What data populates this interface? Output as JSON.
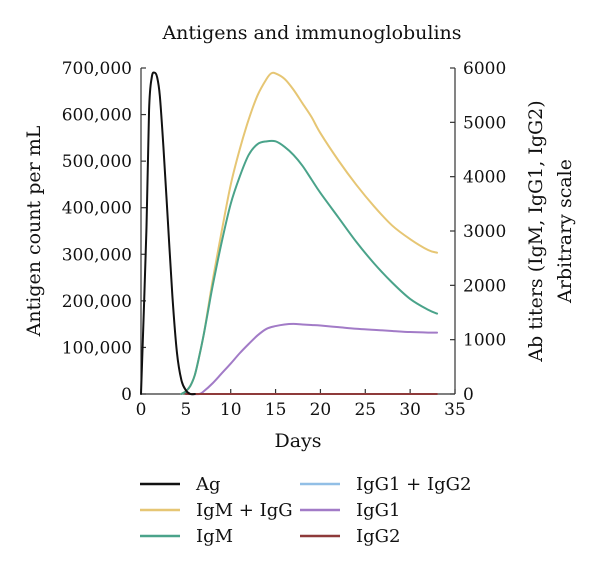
{
  "chart_data": {
    "type": "line",
    "title": "Antigens and immunoglobulins",
    "xlabel": "Days",
    "ylabel_left": "Antigen count per mL",
    "ylabel_right_line1": "Ab titers (IgM, IgG1, IgG2)",
    "ylabel_right_line2": "Arbitrary scale",
    "xlim": [
      0,
      35
    ],
    "ylim_left": [
      0,
      700000
    ],
    "ylim_right": [
      0,
      6000
    ],
    "x_ticks": [
      0,
      5,
      10,
      15,
      20,
      25,
      30,
      35
    ],
    "x_tick_labels": [
      "0",
      "5",
      "10",
      "15",
      "20",
      "25",
      "30",
      "35"
    ],
    "y_left_ticks": [
      0,
      100000,
      200000,
      300000,
      400000,
      500000,
      600000,
      700000
    ],
    "y_left_tick_labels": [
      "0",
      "100,000",
      "200,000",
      "300,000",
      "400,000",
      "500,000",
      "600,000",
      "700,000"
    ],
    "y_right_ticks": [
      0,
      1000,
      2000,
      3000,
      4000,
      5000,
      6000
    ],
    "y_right_tick_labels": [
      "0",
      "1000",
      "2000",
      "3000",
      "4000",
      "5000",
      "6000"
    ],
    "grid": false,
    "legend_placement": "bottom",
    "series": [
      {
        "name": "Ag",
        "axis": "left",
        "color": "#111111",
        "x": [
          0,
          0.6,
          0.9,
          1.2,
          1.5,
          1.8,
          2.1,
          2.5,
          3.0,
          3.5,
          4.0,
          4.5,
          5.0,
          5.5,
          6.0
        ],
        "y": [
          0,
          350000,
          610000,
          680000,
          690000,
          680000,
          640000,
          530000,
          370000,
          210000,
          90000,
          30000,
          8000,
          0,
          0
        ]
      },
      {
        "name": "IgM + IgG",
        "axis": "right",
        "color": "#e6c674",
        "x": [
          4.5,
          5.0,
          5.5,
          6.0,
          6.5,
          7.0,
          7.5,
          8.0,
          9.0,
          10.0,
          11.0,
          12.0,
          13.0,
          14.0,
          14.5,
          15.0,
          16.0,
          17.0,
          18.0,
          19.0,
          20.0,
          22.0,
          24.0,
          26.0,
          28.0,
          30.0,
          32.0,
          33.0
        ],
        "y": [
          0,
          50,
          150,
          350,
          700,
          1100,
          1600,
          2100,
          3000,
          3850,
          4500,
          5050,
          5500,
          5800,
          5900,
          5900,
          5800,
          5600,
          5350,
          5100,
          4800,
          4300,
          3850,
          3450,
          3100,
          2850,
          2650,
          2600
        ]
      },
      {
        "name": "IgM",
        "axis": "right",
        "color": "#4aa38a",
        "x": [
          4.5,
          5.0,
          5.5,
          6.0,
          6.5,
          7.0,
          7.5,
          8.0,
          9.0,
          10.0,
          11.0,
          12.0,
          13.0,
          14.0,
          15.0,
          16.0,
          17.0,
          18.0,
          19.0,
          20.0,
          22.0,
          24.0,
          26.0,
          28.0,
          30.0,
          32.0,
          33.0
        ],
        "y": [
          0,
          50,
          150,
          350,
          700,
          1100,
          1550,
          2000,
          2800,
          3500,
          4000,
          4400,
          4600,
          4650,
          4650,
          4550,
          4400,
          4200,
          3950,
          3700,
          3250,
          2800,
          2400,
          2050,
          1750,
          1550,
          1480
        ]
      },
      {
        "name": "IgG1 + IgG2",
        "axis": "right",
        "color": "#92bfe6",
        "x": [
          6.0,
          33.0
        ],
        "y": [
          0,
          0
        ]
      },
      {
        "name": "IgG1",
        "axis": "right",
        "color": "#a27bc7",
        "x": [
          5.5,
          6.5,
          7.0,
          8.0,
          9.0,
          10.0,
          11.0,
          12.0,
          13.0,
          14.0,
          15.0,
          16.0,
          17.0,
          18.0,
          19.0,
          20.0,
          22.0,
          24.0,
          26.0,
          28.0,
          30.0,
          32.0,
          33.0
        ],
        "y": [
          0,
          0,
          50,
          200,
          380,
          560,
          750,
          920,
          1080,
          1200,
          1250,
          1280,
          1290,
          1280,
          1270,
          1260,
          1230,
          1200,
          1180,
          1160,
          1140,
          1130,
          1130
        ]
      },
      {
        "name": "IgG2",
        "axis": "right",
        "color": "#8e3a3a",
        "x": [
          5.0,
          33.0
        ],
        "y": [
          0,
          0
        ]
      }
    ]
  }
}
